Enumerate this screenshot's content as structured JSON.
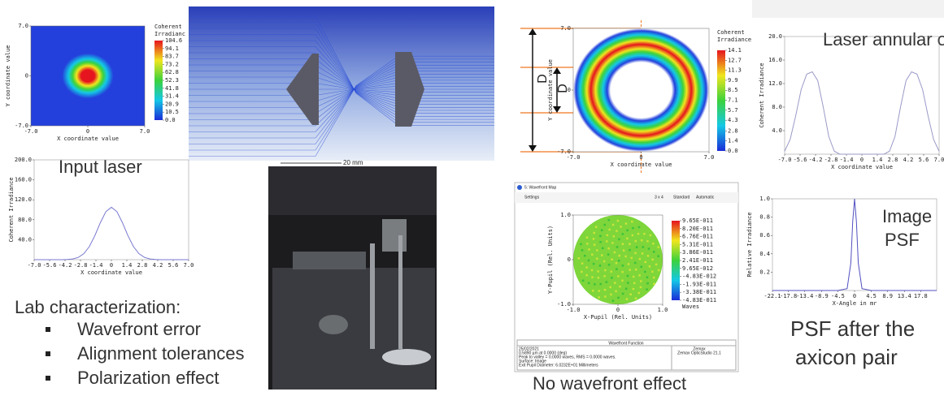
{
  "chart_data": [
    {
      "type": "heatmap",
      "colorbar_title": [
        "Coherent",
        "Irradianc"
      ],
      "xlabel": "X coordinate value",
      "ylabel": "Y coordinate value",
      "xlim": [
        -7,
        7
      ],
      "ylim": [
        -7,
        7
      ],
      "xticks": [
        {
          "value": -7,
          "label": "-7.0"
        },
        0,
        {
          "value": 7,
          "label": "7.0"
        }
      ],
      "yticks": [
        {
          "value": -7,
          "label": "-7.0"
        },
        0,
        {
          "value": 7,
          "label": "7.0"
        }
      ],
      "clim": [
        0,
        104.6
      ],
      "cticks": [
        {
          "value": 0,
          "label": "0.0"
        },
        10.5,
        20.9,
        31.4,
        41.8,
        52.3,
        62.8,
        73.2,
        83.7,
        94.1,
        104.6
      ]
    },
    {
      "type": "heatmap",
      "colorbar_title": [
        "Coherent",
        "Irradiance"
      ],
      "xlabel": "X coordinate value",
      "ylabel": "Y coordinate value",
      "annotations": [
        "D",
        "D"
      ],
      "xlim": [
        -7,
        7
      ],
      "ylim": [
        -7,
        7
      ],
      "xticks": [
        {
          "value": -7,
          "label": "-7.0"
        },
        0,
        {
          "value": 7,
          "label": "7.0"
        }
      ],
      "yticks": [
        {
          "value": -7,
          "label": "-7.0"
        },
        0,
        {
          "value": 7,
          "label": "7.0"
        }
      ],
      "clim": [
        0,
        14.1
      ],
      "cticks": [
        {
          "value": 0,
          "label": "0.0"
        },
        1.4,
        2.8,
        4.3,
        5.7,
        7.1,
        8.5,
        9.9,
        11.3,
        12.7,
        14.1
      ]
    },
    {
      "type": "heatmap",
      "xlabel": "X-Pupil (Rel. Units)",
      "ylabel": "Y-Pupil (Rel. Units)",
      "colorbar_unit": "Waves",
      "xlim": [
        -1,
        1
      ],
      "ylim": [
        -1,
        1
      ],
      "xticks": [
        {
          "value": -1,
          "label": "-1.0"
        },
        0,
        {
          "value": 1,
          "label": "1.0"
        }
      ],
      "yticks": [
        {
          "value": -1,
          "label": "-1.0"
        },
        0,
        {
          "value": 1,
          "label": "1.0"
        }
      ],
      "clim": [
        -4.83e-11,
        9.65e-11
      ],
      "cticks": [
        {
          "value": -4.83e-11,
          "label": "-4.83E-011"
        },
        {
          "value": -3.38e-11,
          "label": "-3.38E-011"
        },
        {
          "value": -1.93e-11,
          "label": "-1.93E-011"
        },
        {
          "value": -4.83e-12,
          "label": "-4.83E-012"
        },
        {
          "value": 9.65e-12,
          "label": "9.65E-012"
        },
        {
          "value": 2.41e-11,
          "label": "2.41E-011"
        },
        {
          "value": 3.86e-11,
          "label": "3.86E-011"
        },
        {
          "value": 5.31e-11,
          "label": "5.31E-011"
        },
        {
          "value": 6.76e-11,
          "label": "6.76E-011"
        },
        {
          "value": 8.2e-11,
          "label": "8.20E-011"
        },
        {
          "value": 9.65e-11,
          "label": "9.65E-011"
        }
      ]
    },
    {
      "type": "line",
      "xlabel": "X coordinate value",
      "ylabel": "Coherent Irradiance",
      "xlim": [
        -7,
        7
      ],
      "ylim": [
        0,
        200
      ],
      "xticks": [
        {
          "value": -7,
          "label": "-7.0"
        },
        -5.6,
        -4.2,
        -2.8,
        -1.4,
        0,
        1.4,
        2.8,
        4.2,
        5.6,
        {
          "value": 7,
          "label": "7.0"
        }
      ],
      "yticks": [
        {
          "value": 40,
          "label": "40.0"
        },
        {
          "value": 80,
          "label": "80.0"
        },
        {
          "value": 120,
          "label": "120.0"
        },
        {
          "value": 160,
          "label": "160.0"
        },
        {
          "value": 200,
          "label": "200.0"
        }
      ],
      "x": [
        -7,
        -6.5,
        -6,
        -5.5,
        -5,
        -4.5,
        -4,
        -3.5,
        -3,
        -2.5,
        -2,
        -1.5,
        -1,
        -0.5,
        0,
        0.5,
        1,
        1.5,
        2,
        2.5,
        3,
        3.5,
        4,
        4.5,
        5,
        5.5,
        6,
        6.5,
        7
      ],
      "series": [
        {
          "color": "#7878d0",
          "values": [
            0,
            0,
            0,
            0,
            0,
            0.1,
            0.4,
            1.5,
            4.6,
            12,
            26.2,
            48.1,
            74.2,
            96.3,
            105,
            96.3,
            74.2,
            48.1,
            26.2,
            12,
            4.6,
            1.5,
            0.4,
            0.1,
            0,
            0,
            0,
            0,
            0
          ]
        }
      ]
    },
    {
      "type": "line",
      "xlabel": "X coordinate value",
      "ylabel": "Coherent Irradiance",
      "xlim": [
        -7,
        7
      ],
      "ylim": [
        0,
        20
      ],
      "xticks": [
        {
          "value": -7,
          "label": "-7.0"
        },
        -5.6,
        -4.2,
        -2.8,
        -1.4,
        0,
        1.4,
        2.8,
        4.2,
        5.6,
        {
          "value": 7,
          "label": "7.0"
        }
      ],
      "yticks": [
        {
          "value": 4,
          "label": "4.0"
        },
        {
          "value": 8,
          "label": "8.0"
        },
        {
          "value": 12,
          "label": "12.0"
        },
        {
          "value": 16,
          "label": "16.0"
        },
        {
          "value": 20,
          "label": "20.0"
        }
      ],
      "x": [
        -7,
        -6.5,
        -6,
        -5.5,
        -5,
        -4.5,
        -4,
        -3.5,
        -3,
        -2.5,
        -2,
        -1.5,
        -1,
        -0.5,
        0,
        0.5,
        1,
        1.5,
        2,
        2.5,
        3,
        3.5,
        4,
        4.5,
        5,
        5.5,
        6,
        6.5,
        7
      ],
      "series": [
        {
          "color": "#9a9ac8",
          "values": [
            0.5,
            2.5,
            6.5,
            11,
            13.6,
            14,
            12.5,
            8,
            3,
            0.5,
            0,
            0,
            0,
            0,
            0,
            0,
            0,
            0,
            0,
            0.5,
            3,
            8,
            12.5,
            14,
            13.6,
            11,
            6.5,
            2.5,
            0.5
          ]
        }
      ]
    },
    {
      "type": "line",
      "xlabel": "X-Angle in mr",
      "ylabel": "Relative Irradiance",
      "xlim": [
        -22.1,
        22.1
      ],
      "ylim": [
        0,
        1
      ],
      "xticks": [
        -22.1,
        -17.8,
        -13.4,
        -8.9,
        -4.5,
        0,
        4.5,
        8.9,
        13.4,
        17.8
      ],
      "yticks": [
        0.2,
        0.4,
        0.6,
        0.8,
        {
          "value": 1,
          "label": "1.0"
        }
      ],
      "x": [
        -22.1,
        -4.5,
        -2,
        -1,
        -0.5,
        0,
        0.5,
        1,
        2,
        4.5,
        22.1
      ],
      "series": [
        {
          "color": "#5050c0",
          "values": [
            0,
            0,
            0.02,
            0.3,
            0.75,
            1,
            0.75,
            0.3,
            0.02,
            0,
            0
          ]
        }
      ]
    }
  ],
  "captions": {
    "input": "Input laser",
    "annular": [
      "Laser annular output"
    ],
    "psf": [
      "Image",
      "PSF"
    ],
    "psf_after": [
      "PSF after the",
      "axicon pair"
    ],
    "wavefront": "No wavefront effect"
  },
  "lab": {
    "heading": "Lab characterization:",
    "bullets": [
      "Wavefront error",
      "Alignment tolerances",
      "Polarization effect"
    ]
  },
  "lens_scale": "20 mm",
  "wavefront_window": {
    "title": "5: Wavefront Map",
    "toolbar": [
      "Settings",
      "3 x 4",
      "Standard",
      "Automatic"
    ],
    "footer_title": "Wavefront Function",
    "footer_lines": [
      "25/02/2021",
      "0.5890 µm at 0.0000 (deg)",
      "Peak to valley = 0.0000 waves, RMS = 0.0000 waves.",
      "Surface: Image",
      "Exit Pupil Diameter: 6.0232E+01 Millimeters"
    ],
    "brand": [
      "Zemax",
      "Zemax OpticStudio 21.1"
    ]
  }
}
